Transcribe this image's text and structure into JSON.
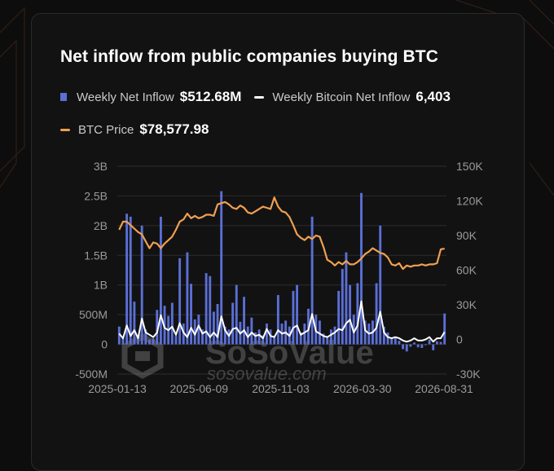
{
  "title": "Net inflow from public companies buying BTC",
  "legend": [
    {
      "label": "Weekly Net Inflow",
      "value": "$512.68M",
      "color": "#5b6fd6",
      "kind": "bar"
    },
    {
      "label": "Weekly Bitcoin Net Inflow",
      "value": "6,403",
      "color": "#ffffff",
      "kind": "line"
    },
    {
      "label": "BTC Price",
      "value": "$78,577.98",
      "color": "#f0a050",
      "kind": "line"
    }
  ],
  "watermark": {
    "brand": "SoSoValue",
    "url": "sosovalue.com"
  },
  "colors": {
    "bar": "#5b6fd6",
    "btc_net": "#ffffff",
    "price": "#f0a050",
    "grid": "#2c2c2c",
    "tick": "#9a9a9a"
  },
  "chart_data": {
    "type": "bar",
    "x_tick_labels": [
      "2025-01-13",
      "2025-06-09",
      "2025-11-03",
      "2026-03-30",
      "2026-08-31"
    ],
    "y_left": {
      "ticks": [
        "3B",
        "2.5B",
        "2B",
        "1.5B",
        "1B",
        "500M",
        "0",
        "-500M"
      ],
      "range": [
        -500000000,
        3000000000
      ]
    },
    "y_right": {
      "ticks": [
        "150K",
        "120K",
        "90K",
        "60K",
        "30K",
        "0",
        "-30K"
      ],
      "range": [
        -30000,
        150000
      ]
    },
    "grid": true,
    "series": [
      {
        "name": "Weekly Net Inflow",
        "kind": "bar",
        "axis": "left",
        "unit": "USD",
        "values": [
          300,
          120,
          2200,
          2150,
          720,
          100,
          2000,
          250,
          80,
          100,
          580,
          2150,
          650,
          480,
          700,
          150,
          1450,
          350,
          1550,
          1020,
          420,
          500,
          250,
          1200,
          1150,
          550,
          680,
          2580,
          300,
          250,
          700,
          1000,
          380,
          800,
          300,
          450,
          200,
          250,
          150,
          350,
          250,
          140,
          830,
          350,
          400,
          300,
          900,
          1000,
          200,
          350,
          600,
          2150,
          500,
          400,
          180,
          120,
          250,
          300,
          900,
          1270,
          1550,
          1000,
          500,
          1030,
          2550,
          400,
          350,
          400,
          1030,
          2000,
          300,
          200,
          100,
          120,
          60,
          -80,
          -120,
          -40,
          30,
          -50,
          -60,
          -10,
          80,
          -100,
          50,
          40,
          520
        ]
      },
      {
        "name": "Weekly Bitcoin Net Inflow",
        "kind": "line",
        "axis": "right",
        "values": [
          5,
          1,
          12,
          3,
          8,
          1,
          18,
          6,
          4,
          2,
          6,
          21,
          10,
          8,
          11,
          4,
          14,
          6,
          2,
          10,
          4,
          12,
          5,
          7,
          2,
          6,
          2,
          20,
          8,
          3,
          9,
          10,
          5,
          8,
          2,
          6,
          3,
          4,
          1,
          9,
          3,
          2,
          8,
          5,
          6,
          3,
          10,
          12,
          4,
          6,
          8,
          22,
          7,
          5,
          3,
          2,
          4,
          6,
          9,
          8,
          14,
          17,
          6,
          12,
          33,
          8,
          5,
          6,
          10,
          24,
          6,
          2,
          1,
          2,
          1,
          -1,
          -2,
          -1,
          1,
          -1,
          -1,
          0,
          2,
          -2,
          1,
          1,
          6.4
        ]
      },
      {
        "name": "BTC Price",
        "kind": "line",
        "axis": "right",
        "unit": "USD",
        "values": [
          95000,
          102000,
          102000,
          99000,
          96000,
          93000,
          91000,
          85000,
          79000,
          84000,
          83000,
          79000,
          83000,
          86000,
          89000,
          95000,
          102000,
          104000,
          109000,
          105000,
          107000,
          105000,
          106000,
          108000,
          108000,
          107000,
          117000,
          118000,
          119000,
          117000,
          114000,
          113000,
          116000,
          114000,
          110000,
          109000,
          111000,
          113000,
          115000,
          114000,
          113000,
          123000,
          115000,
          111000,
          110000,
          106000,
          99000,
          91000,
          88000,
          86000,
          89000,
          87000,
          90000,
          89000,
          80000,
          69000,
          67000,
          64000,
          67000,
          65000,
          68000,
          65000,
          65000,
          67000,
          70000,
          74000,
          76000,
          79000,
          77000,
          75000,
          74000,
          71000,
          65000,
          64000,
          66000,
          61000,
          64000,
          63000,
          64000,
          64000,
          65000,
          64000,
          65000,
          65000,
          66000,
          78000,
          78600
        ]
      }
    ]
  }
}
